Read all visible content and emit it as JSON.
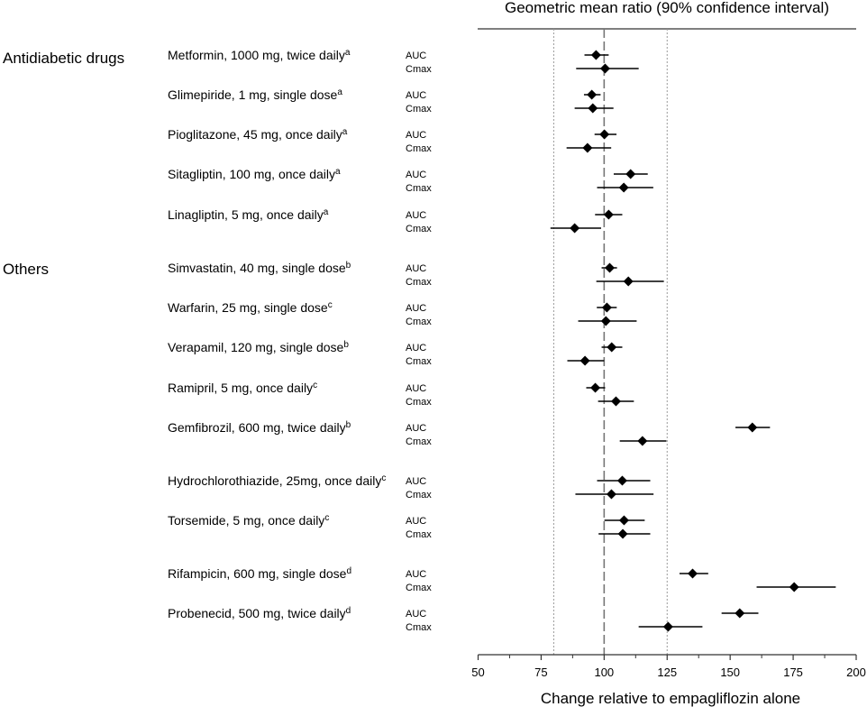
{
  "chart_data": {
    "type": "forest",
    "title": "Geometric mean ratio (90% confidence interval)",
    "xlabel": "Change relative to empagliflozin alone",
    "xlim": [
      50,
      200
    ],
    "xticks": [
      50,
      75,
      100,
      125,
      150,
      175,
      200
    ],
    "xtick_labels": [
      "50",
      "75",
      "100",
      "125",
      "150",
      "175",
      "200"
    ],
    "minor_ticks": [
      62.5,
      87.5,
      112.5,
      137.5,
      162.5,
      187.5
    ],
    "reference_line": 100,
    "equivalence_bounds": [
      80,
      125
    ],
    "groups": [
      {
        "name": "Antidiabetic drugs",
        "drugs": [
          {
            "label": "Metformin, 1000 mg, twice daily",
            "footnote": "a",
            "AUC": {
              "gmr": 96.8,
              "lo": 92.2,
              "hi": 101.8
            },
            "Cmax": {
              "gmr": 100.4,
              "lo": 88.9,
              "hi": 113.7
            }
          },
          {
            "label": "Glimepiride, 1 mg, single dose",
            "footnote": "a",
            "AUC": {
              "gmr": 95.1,
              "lo": 92.0,
              "hi": 98.6
            },
            "Cmax": {
              "gmr": 95.5,
              "lo": 88.3,
              "hi": 103.7
            }
          },
          {
            "label": "Pioglitazone, 45 mg, once daily",
            "footnote": "a",
            "AUC": {
              "gmr": 100.1,
              "lo": 96.2,
              "hi": 104.9
            },
            "Cmax": {
              "gmr": 93.4,
              "lo": 85.1,
              "hi": 102.8
            }
          },
          {
            "label": "Sitagliptin, 100 mg, once daily",
            "footnote": "a",
            "AUC": {
              "gmr": 110.5,
              "lo": 103.8,
              "hi": 117.3
            },
            "Cmax": {
              "gmr": 107.8,
              "lo": 97.2,
              "hi": 119.5
            }
          },
          {
            "label": "Linagliptin, 5 mg, once daily",
            "footnote": "a",
            "AUC": {
              "gmr": 101.8,
              "lo": 96.4,
              "hi": 107.2
            },
            "Cmax": {
              "gmr": 88.3,
              "lo": 78.7,
              "hi": 98.8
            }
          }
        ]
      },
      {
        "name": "Others",
        "drugs": [
          {
            "label": "Simvastatin, 40 mg, single dose",
            "footnote": "b",
            "AUC": {
              "gmr": 102.2,
              "lo": 99.0,
              "hi": 105.1
            },
            "Cmax": {
              "gmr": 109.6,
              "lo": 96.9,
              "hi": 123.7
            }
          },
          {
            "label": "Warfarin, 25 mg, single dose",
            "footnote": "c",
            "AUC": {
              "gmr": 101.1,
              "lo": 97.1,
              "hi": 105.0
            },
            "Cmax": {
              "gmr": 100.7,
              "lo": 89.7,
              "hi": 112.9
            }
          },
          {
            "label": "Verapamil, 120 mg, single dose",
            "footnote": "b",
            "AUC": {
              "gmr": 103.0,
              "lo": 99.0,
              "hi": 107.2
            },
            "Cmax": {
              "gmr": 92.4,
              "lo": 85.4,
              "hi": 100.0
            }
          },
          {
            "label": "Ramipril, 5 mg, once daily",
            "footnote": "c",
            "AUC": {
              "gmr": 96.5,
              "lo": 92.9,
              "hi": 100.4
            },
            "Cmax": {
              "gmr": 104.7,
              "lo": 97.6,
              "hi": 111.8
            }
          },
          {
            "label": "Gemfibrozil, 600 mg, twice daily",
            "footnote": "b",
            "AUC": {
              "gmr": 158.8,
              "lo": 152.1,
              "hi": 165.8
            },
            "Cmax": {
              "gmr": 115.2,
              "lo": 106.2,
              "hi": 124.7
            }
          },
          {
            "label": "Hydrochlorothiazide, 25mg, once daily",
            "footnote": "c",
            "AUC": {
              "gmr": 107.2,
              "lo": 97.2,
              "hi": 118.3
            },
            "Cmax": {
              "gmr": 102.9,
              "lo": 88.6,
              "hi": 119.6
            }
          },
          {
            "label": "Torsemide, 5 mg, once daily",
            "footnote": "c",
            "AUC": {
              "gmr": 107.9,
              "lo": 100.1,
              "hi": 116.1
            },
            "Cmax": {
              "gmr": 107.4,
              "lo": 97.8,
              "hi": 118.3
            }
          },
          {
            "label": "Rifampicin, 600 mg, single dose",
            "footnote": "d",
            "AUC": {
              "gmr": 135.1,
              "lo": 129.9,
              "hi": 141.3
            },
            "Cmax": {
              "gmr": 175.4,
              "lo": 160.5,
              "hi": 191.9
            }
          },
          {
            "label": "Probenecid, 500 mg, twice daily",
            "footnote": "d",
            "AUC": {
              "gmr": 153.8,
              "lo": 146.6,
              "hi": 161.2
            },
            "Cmax": {
              "gmr": 125.4,
              "lo": 113.7,
              "hi": 139.0
            }
          }
        ]
      }
    ],
    "metric_labels": [
      "AUC",
      "Cmax"
    ]
  }
}
